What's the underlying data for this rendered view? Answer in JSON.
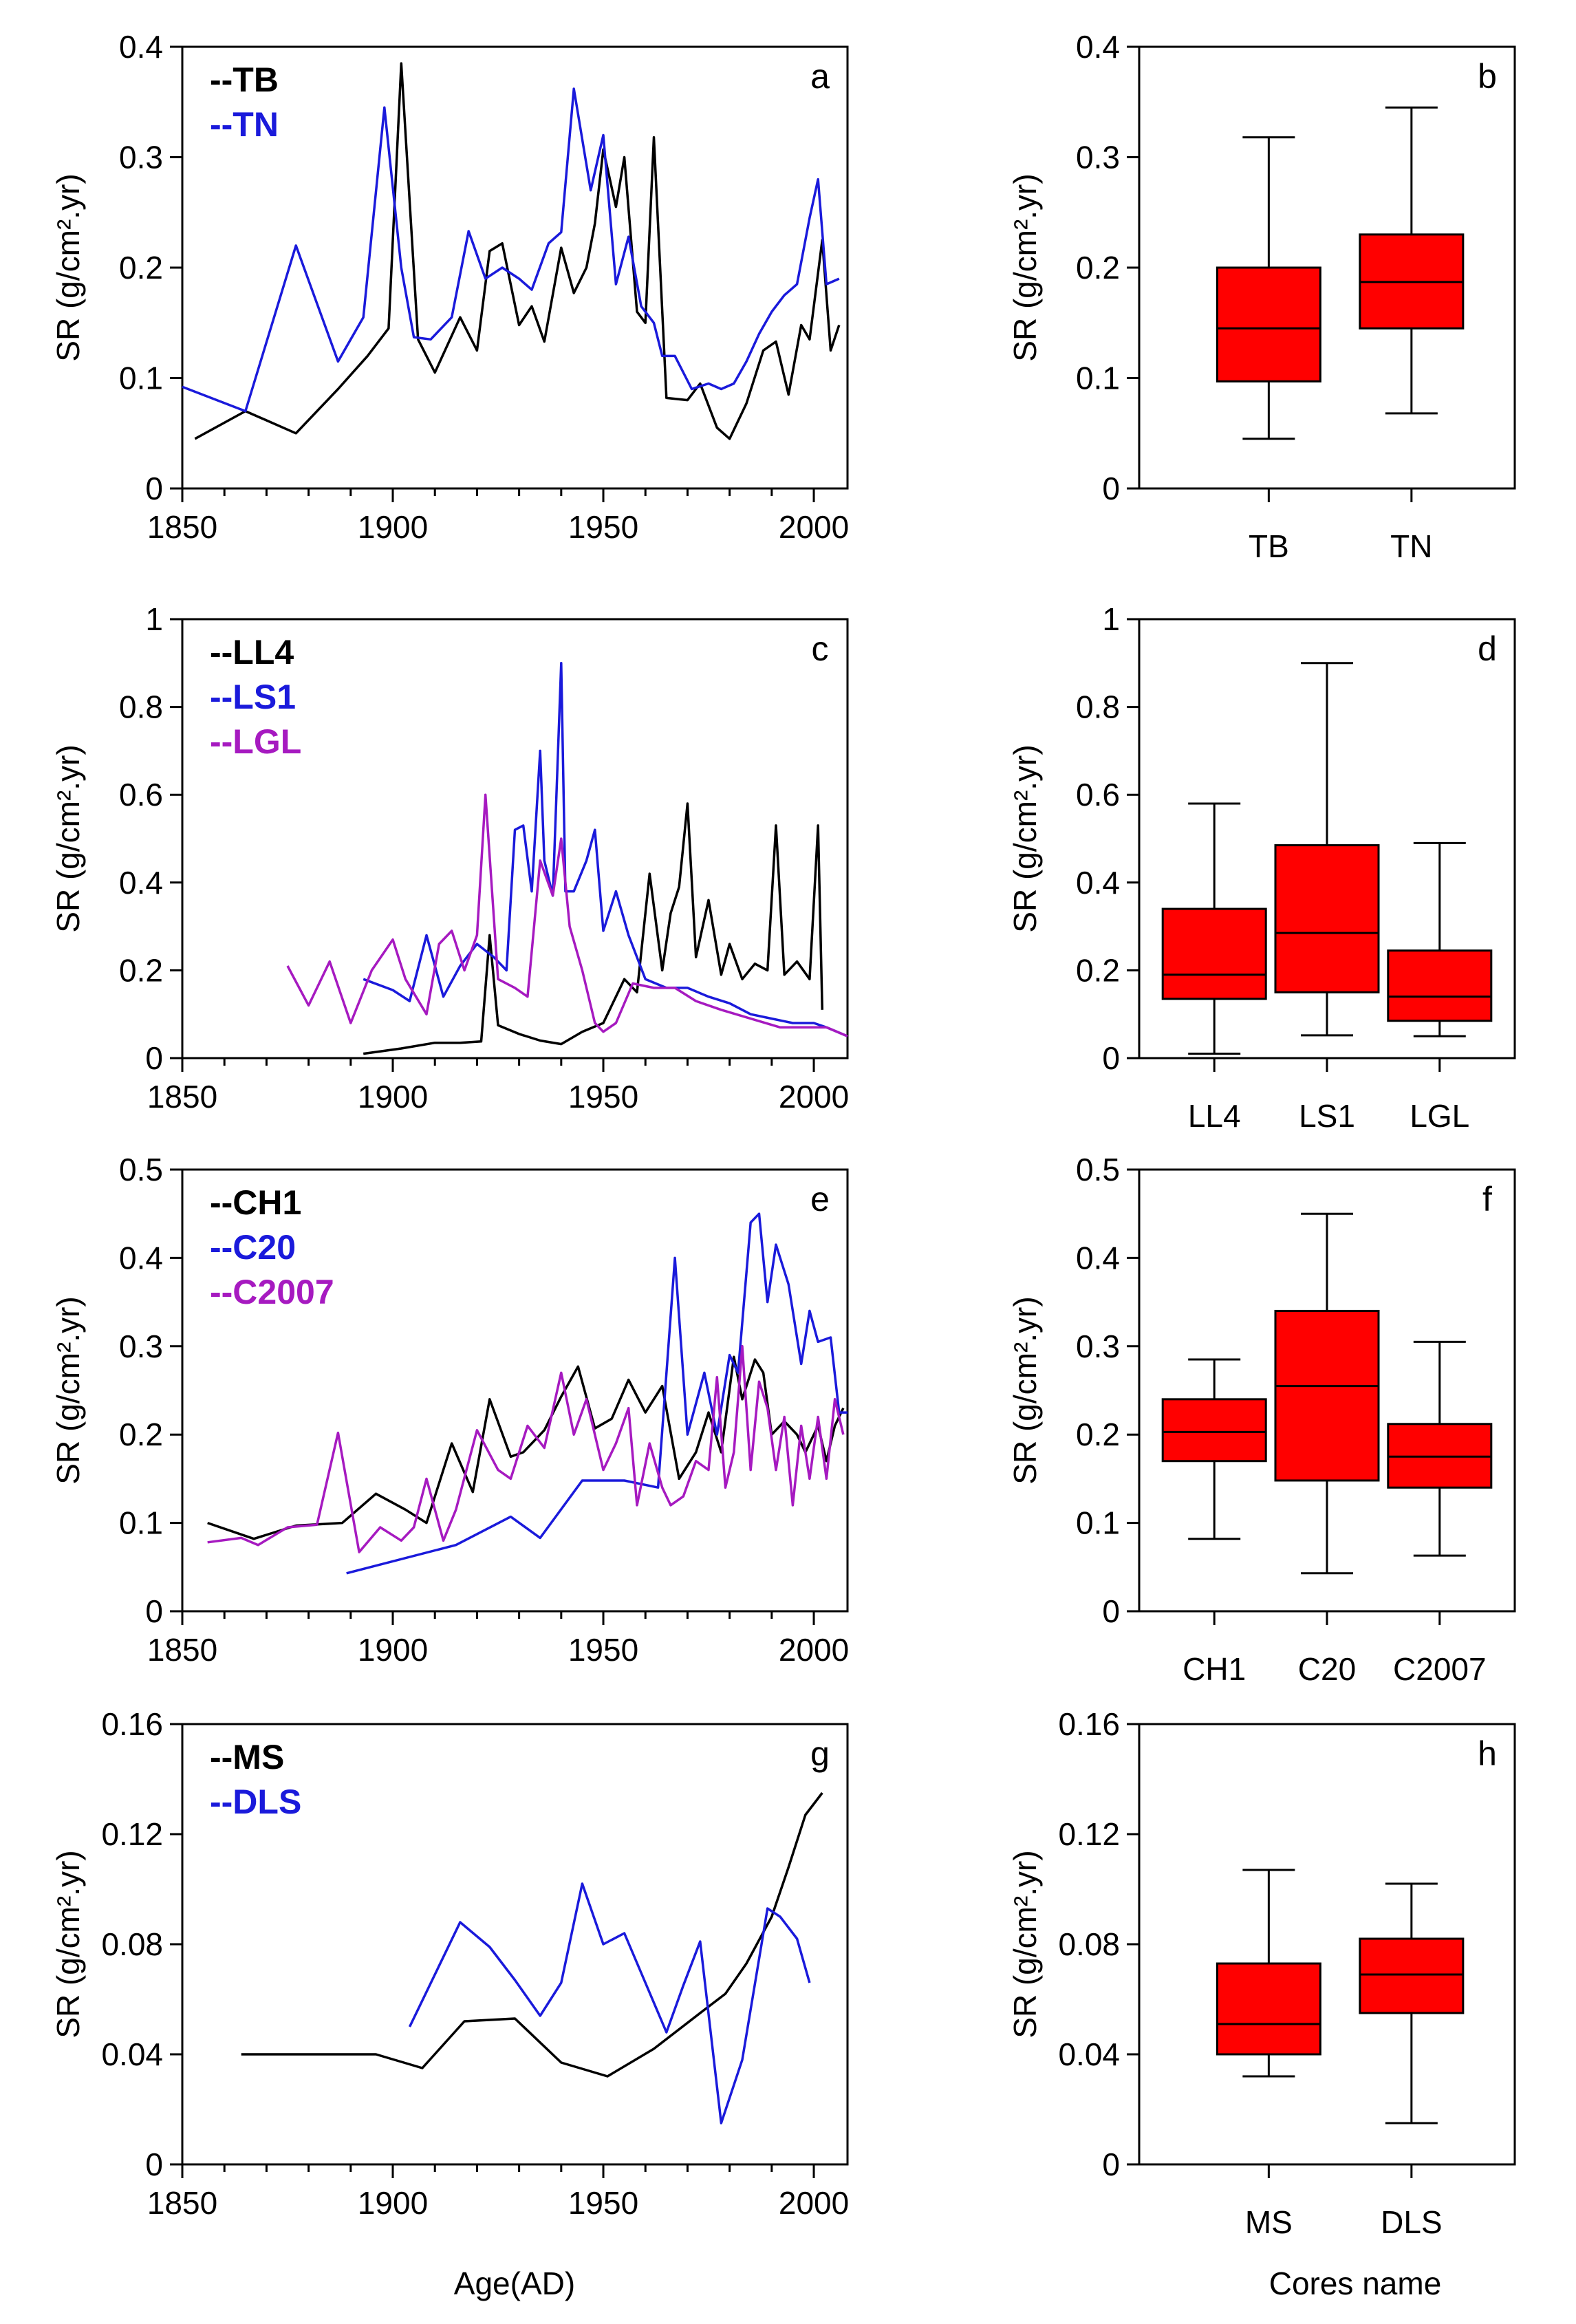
{
  "figure": {
    "xlabel_bottom_left": "Age(AD)",
    "xlabel_bottom_right": "Cores name"
  },
  "chart_data": [
    {
      "id": "a",
      "type": "line",
      "panel_label": "a",
      "ylabel": "SR (g/cm².yr)",
      "xlabel": "",
      "xlim": [
        1850,
        2008
      ],
      "ylim": [
        0,
        0.4
      ],
      "xticks": [
        "1850",
        "1900",
        "1950",
        "2000"
      ],
      "yticks": [
        "0",
        "0.1",
        "0.2",
        "0.3",
        "0.4"
      ],
      "series": [
        {
          "name": "--TB",
          "color": "#000000",
          "x": [
            1853,
            1865,
            1877,
            1887,
            1894,
            1899,
            1902,
            1906,
            1910,
            1916,
            1920,
            1923,
            1926,
            1930,
            1933,
            1936,
            1940,
            1943,
            1946,
            1948,
            1950,
            1953,
            1955,
            1958,
            1960,
            1962,
            1965,
            1970,
            1973,
            1977,
            1980,
            1984,
            1988,
            1991,
            1994,
            1997,
            1999,
            2002,
            2004,
            2006
          ],
          "y": [
            0.045,
            0.07,
            0.05,
            0.09,
            0.12,
            0.145,
            0.385,
            0.135,
            0.105,
            0.155,
            0.125,
            0.215,
            0.222,
            0.148,
            0.165,
            0.133,
            0.218,
            0.177,
            0.2,
            0.24,
            0.307,
            0.255,
            0.3,
            0.16,
            0.15,
            0.318,
            0.082,
            0.08,
            0.095,
            0.055,
            0.045,
            0.077,
            0.125,
            0.133,
            0.085,
            0.148,
            0.135,
            0.225,
            0.125,
            0.148
          ]
        },
        {
          "name": "--TN",
          "color": "#1a1adb",
          "x": [
            1850,
            1865,
            1877,
            1887,
            1893,
            1898,
            1902,
            1905,
            1909,
            1914,
            1918,
            1922,
            1926,
            1930,
            1933,
            1937,
            1940,
            1943,
            1947,
            1950,
            1953,
            1956,
            1959,
            1962,
            1964,
            1967,
            1971,
            1975,
            1978,
            1981,
            1984,
            1987,
            1990,
            1993,
            1996,
            1999,
            2001,
            2003,
            2006
          ],
          "y": [
            0.092,
            0.07,
            0.22,
            0.115,
            0.155,
            0.345,
            0.2,
            0.137,
            0.135,
            0.155,
            0.233,
            0.19,
            0.2,
            0.19,
            0.18,
            0.222,
            0.232,
            0.362,
            0.27,
            0.32,
            0.185,
            0.228,
            0.165,
            0.15,
            0.12,
            0.12,
            0.09,
            0.095,
            0.09,
            0.095,
            0.115,
            0.14,
            0.16,
            0.175,
            0.185,
            0.245,
            0.28,
            0.185,
            0.19
          ]
        }
      ]
    },
    {
      "id": "b",
      "type": "box",
      "panel_label": "b",
      "ylabel": "SR (g/cm².yr)",
      "ylim": [
        0,
        0.4
      ],
      "yticks": [
        "0",
        "0.1",
        "0.2",
        "0.3",
        "0.4"
      ],
      "boxes": [
        {
          "name": "TB",
          "min": 0.045,
          "q1": 0.097,
          "median": 0.145,
          "q3": 0.2,
          "max": 0.318
        },
        {
          "name": "TN",
          "min": 0.068,
          "q1": 0.145,
          "median": 0.187,
          "q3": 0.23,
          "max": 0.345
        }
      ]
    },
    {
      "id": "c",
      "type": "line",
      "panel_label": "c",
      "ylabel": "SR (g/cm².yr)",
      "xlabel": "",
      "xlim": [
        1850,
        2008
      ],
      "ylim": [
        0,
        1
      ],
      "xticks": [
        "1850",
        "1900",
        "1950",
        "2000"
      ],
      "yticks": [
        "0",
        "0.2",
        "0.4",
        "0.6",
        "0.8",
        "1"
      ],
      "series": [
        {
          "name": "--LL4",
          "color": "#000000",
          "x": [
            1893,
            1902,
            1910,
            1916,
            1921,
            1923,
            1925,
            1930,
            1935,
            1940,
            1945,
            1950,
            1955,
            1958,
            1961,
            1964,
            1966,
            1968,
            1970,
            1972,
            1975,
            1978,
            1980,
            1983,
            1986,
            1989,
            1991,
            1993,
            1996,
            1999,
            2001,
            2002
          ],
          "y": [
            0.01,
            0.022,
            0.035,
            0.035,
            0.038,
            0.28,
            0.075,
            0.055,
            0.04,
            0.032,
            0.06,
            0.08,
            0.18,
            0.15,
            0.42,
            0.2,
            0.33,
            0.39,
            0.58,
            0.23,
            0.36,
            0.19,
            0.26,
            0.18,
            0.215,
            0.2,
            0.53,
            0.19,
            0.22,
            0.18,
            0.53,
            0.11
          ]
        },
        {
          "name": "--LS1",
          "color": "#1a1adb",
          "x": [
            1893,
            1900,
            1904,
            1908,
            1912,
            1916,
            1920,
            1924,
            1927,
            1929,
            1931,
            1933,
            1935,
            1936,
            1938,
            1940,
            1941,
            1943,
            1946,
            1948,
            1950,
            1953,
            1956,
            1960,
            1965,
            1970,
            1975,
            1980,
            1985,
            1990,
            1995,
            2000,
            2003,
            2008
          ],
          "y": [
            0.18,
            0.155,
            0.13,
            0.28,
            0.14,
            0.21,
            0.26,
            0.23,
            0.2,
            0.52,
            0.53,
            0.38,
            0.7,
            0.45,
            0.37,
            0.9,
            0.38,
            0.38,
            0.45,
            0.52,
            0.29,
            0.38,
            0.28,
            0.18,
            0.16,
            0.16,
            0.14,
            0.125,
            0.1,
            0.09,
            0.08,
            0.08,
            0.07,
            0.05
          ]
        },
        {
          "name": "--LGL",
          "color": "#a61ac0",
          "x": [
            1875,
            1880,
            1885,
            1890,
            1895,
            1900,
            1903,
            1908,
            1911,
            1914,
            1917,
            1920,
            1922,
            1925,
            1929,
            1932,
            1935,
            1938,
            1940,
            1942,
            1945,
            1948,
            1950,
            1953,
            1957,
            1962,
            1967,
            1972,
            1978,
            1985,
            1992,
            1998,
            2003,
            2008
          ],
          "y": [
            0.21,
            0.12,
            0.22,
            0.08,
            0.2,
            0.27,
            0.18,
            0.1,
            0.26,
            0.29,
            0.2,
            0.28,
            0.6,
            0.18,
            0.16,
            0.14,
            0.45,
            0.37,
            0.5,
            0.3,
            0.2,
            0.08,
            0.06,
            0.08,
            0.17,
            0.16,
            0.16,
            0.13,
            0.11,
            0.09,
            0.07,
            0.07,
            0.07,
            0.05
          ]
        }
      ]
    },
    {
      "id": "d",
      "type": "box",
      "panel_label": "d",
      "ylabel": "SR (g/cm².yr)",
      "ylim": [
        0,
        1
      ],
      "yticks": [
        "0",
        "0.2",
        "0.4",
        "0.6",
        "0.8",
        "1"
      ],
      "boxes": [
        {
          "name": "LL4",
          "min": 0.01,
          "q1": 0.135,
          "median": 0.19,
          "q3": 0.34,
          "max": 0.58
        },
        {
          "name": "LS1",
          "min": 0.052,
          "q1": 0.15,
          "median": 0.285,
          "q3": 0.485,
          "max": 0.9
        },
        {
          "name": "LGL",
          "min": 0.05,
          "q1": 0.085,
          "median": 0.14,
          "q3": 0.245,
          "max": 0.49
        }
      ]
    },
    {
      "id": "e",
      "type": "line",
      "panel_label": "e",
      "ylabel": "SR (g/cm².yr)",
      "xlabel": "",
      "xlim": [
        1850,
        2008
      ],
      "ylim": [
        0,
        0.5
      ],
      "xticks": [
        "1850",
        "1900",
        "1950",
        "2000"
      ],
      "yticks": [
        "0",
        "0.1",
        "0.2",
        "0.3",
        "0.4",
        "0.5"
      ],
      "series": [
        {
          "name": "--CH1",
          "color": "#000000",
          "x": [
            1856,
            1867,
            1877,
            1888,
            1896,
            1903,
            1908,
            1914,
            1919,
            1923,
            1928,
            1931,
            1936,
            1940,
            1944,
            1948,
            1952,
            1956,
            1960,
            1964,
            1968,
            1972,
            1975,
            1978,
            1981,
            1983,
            1986,
            1988,
            1990,
            1993,
            1996,
            1998,
            2001,
            2003,
            2005,
            2007
          ],
          "y": [
            0.1,
            0.082,
            0.097,
            0.1,
            0.133,
            0.115,
            0.1,
            0.19,
            0.135,
            0.24,
            0.175,
            0.18,
            0.205,
            0.243,
            0.277,
            0.207,
            0.218,
            0.262,
            0.225,
            0.255,
            0.15,
            0.18,
            0.225,
            0.18,
            0.288,
            0.24,
            0.285,
            0.27,
            0.2,
            0.215,
            0.2,
            0.18,
            0.21,
            0.17,
            0.21,
            0.23
          ]
        },
        {
          "name": "--C20",
          "color": "#1a1adb",
          "x": [
            1889,
            1915,
            1928,
            1935,
            1945,
            1955,
            1963,
            1967,
            1970,
            1974,
            1977,
            1980,
            1982,
            1985,
            1987,
            1989,
            1991,
            1994,
            1997,
            1999,
            2001,
            2004,
            2006,
            2008
          ],
          "y": [
            0.043,
            0.075,
            0.107,
            0.083,
            0.148,
            0.148,
            0.14,
            0.4,
            0.2,
            0.27,
            0.2,
            0.29,
            0.27,
            0.44,
            0.45,
            0.35,
            0.415,
            0.37,
            0.28,
            0.34,
            0.305,
            0.31,
            0.225,
            0.225
          ]
        },
        {
          "name": "--C2007",
          "color": "#a61ac0",
          "x": [
            1856,
            1864,
            1868,
            1875,
            1882,
            1887,
            1892,
            1897,
            1902,
            1905,
            1908,
            1912,
            1915,
            1920,
            1925,
            1928,
            1932,
            1936,
            1940,
            1943,
            1946,
            1950,
            1953,
            1956,
            1958,
            1961,
            1964,
            1966,
            1969,
            1972,
            1975,
            1977,
            1979,
            1981,
            1983,
            1985,
            1987,
            1989,
            1991,
            1993,
            1995,
            1997,
            1999,
            2001,
            2003,
            2005,
            2007
          ],
          "y": [
            0.078,
            0.083,
            0.075,
            0.095,
            0.098,
            0.202,
            0.067,
            0.095,
            0.08,
            0.095,
            0.15,
            0.08,
            0.115,
            0.205,
            0.16,
            0.15,
            0.21,
            0.185,
            0.27,
            0.2,
            0.24,
            0.16,
            0.19,
            0.23,
            0.12,
            0.19,
            0.14,
            0.12,
            0.13,
            0.17,
            0.16,
            0.265,
            0.14,
            0.18,
            0.3,
            0.16,
            0.26,
            0.23,
            0.16,
            0.22,
            0.12,
            0.21,
            0.15,
            0.22,
            0.15,
            0.24,
            0.2
          ]
        }
      ]
    },
    {
      "id": "f",
      "type": "box",
      "panel_label": "f",
      "ylabel": "SR (g/cm².yr)",
      "ylim": [
        0,
        0.5
      ],
      "yticks": [
        "0",
        "0.1",
        "0.2",
        "0.3",
        "0.4",
        "0.5"
      ],
      "boxes": [
        {
          "name": "CH1",
          "min": 0.082,
          "q1": 0.17,
          "median": 0.203,
          "q3": 0.24,
          "max": 0.285
        },
        {
          "name": "C20",
          "min": 0.043,
          "q1": 0.148,
          "median": 0.255,
          "q3": 0.34,
          "max": 0.45
        },
        {
          "name": "C2007",
          "min": 0.063,
          "q1": 0.14,
          "median": 0.175,
          "q3": 0.212,
          "max": 0.305
        }
      ]
    },
    {
      "id": "g",
      "type": "line",
      "panel_label": "g",
      "ylabel": "SR (g/cm².yr)",
      "xlabel": "Age(AD)",
      "xlim": [
        1850,
        2008
      ],
      "ylim": [
        0,
        0.16
      ],
      "xticks": [
        "1850",
        "1900",
        "1950",
        "2000"
      ],
      "yticks": [
        "0",
        "0.04",
        "0.08",
        "0.12",
        "0.16"
      ],
      "series": [
        {
          "name": "--MS",
          "color": "#000000",
          "x": [
            1864,
            1880,
            1896,
            1907,
            1917,
            1929,
            1940,
            1951,
            1962,
            1973,
            1979,
            1984,
            1990,
            1994,
            1998,
            2002
          ],
          "y": [
            0.04,
            0.04,
            0.04,
            0.035,
            0.052,
            0.053,
            0.037,
            0.032,
            0.042,
            0.055,
            0.062,
            0.073,
            0.09,
            0.108,
            0.127,
            0.135
          ]
        },
        {
          "name": "--DLS",
          "color": "#1a1adb",
          "x": [
            1904,
            1916,
            1923,
            1929,
            1935,
            1940,
            1945,
            1950,
            1955,
            1960,
            1965,
            1969,
            1973,
            1978,
            1983,
            1989,
            1992,
            1996,
            1999
          ],
          "y": [
            0.05,
            0.088,
            0.079,
            0.067,
            0.054,
            0.066,
            0.102,
            0.08,
            0.084,
            0.066,
            0.048,
            0.065,
            0.081,
            0.015,
            0.038,
            0.093,
            0.09,
            0.082,
            0.066
          ]
        }
      ]
    },
    {
      "id": "h",
      "type": "box",
      "panel_label": "h",
      "ylabel": "SR (g/cm².yr)",
      "ylim": [
        0,
        0.16
      ],
      "yticks": [
        "0",
        "0.04",
        "0.08",
        "0.12",
        "0.16"
      ],
      "boxes": [
        {
          "name": "MS",
          "min": 0.032,
          "q1": 0.04,
          "median": 0.051,
          "q3": 0.073,
          "max": 0.107
        },
        {
          "name": "DLS",
          "min": 0.015,
          "q1": 0.055,
          "median": 0.069,
          "q3": 0.082,
          "max": 0.102
        }
      ]
    }
  ]
}
